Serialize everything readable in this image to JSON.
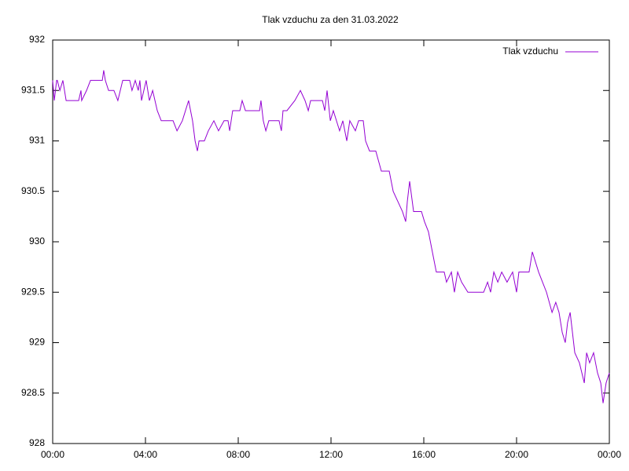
{
  "chart_data": {
    "type": "line",
    "title": "Tlak vzduchu za den 31.03.2022",
    "x": [
      0,
      0.07,
      0.17,
      0.2,
      0.31,
      0.44,
      0.58,
      0.71,
      1.12,
      1.22,
      1.25,
      1.46,
      1.63,
      2.14,
      2.2,
      2.27,
      2.41,
      2.64,
      2.81,
      3.02,
      3.32,
      3.42,
      3.56,
      3.69,
      3.76,
      3.83,
      4.03,
      4.17,
      4.31,
      4.51,
      4.68,
      4.78,
      5.19,
      5.36,
      5.59,
      5.86,
      6.03,
      6.14,
      6.24,
      6.31,
      6.54,
      6.71,
      6.95,
      7.15,
      7.39,
      7.56,
      7.63,
      7.76,
      8.07,
      8.17,
      8.31,
      8.92,
      8.98,
      9.08,
      9.19,
      9.32,
      9.76,
      9.86,
      9.93,
      10.1,
      10.44,
      10.68,
      10.88,
      11.02,
      11.12,
      11.63,
      11.73,
      11.83,
      11.97,
      12.1,
      12.37,
      12.51,
      12.68,
      12.81,
      13.05,
      13.19,
      13.39,
      13.49,
      13.66,
      13.93,
      14.17,
      14.51,
      14.68,
      14.88,
      15.08,
      15.22,
      15.29,
      15.39,
      15.56,
      15.9,
      16.03,
      16.2,
      16.37,
      16.54,
      16.88,
      16.98,
      17.19,
      17.32,
      17.46,
      17.63,
      17.9,
      18.58,
      18.75,
      18.88,
      19.02,
      19.19,
      19.36,
      19.59,
      19.83,
      20.0,
      20.1,
      20.54,
      20.68,
      20.95,
      21.12,
      21.29,
      21.53,
      21.69,
      21.83,
      21.97,
      22.1,
      22.2,
      22.31,
      22.51,
      22.71,
      22.92,
      23.02,
      23.15,
      23.32,
      23.49,
      23.63,
      23.73,
      23.86,
      24.0
    ],
    "series": [
      {
        "name": "Tlak vzduchu",
        "color": "#9400d3",
        "values": [
          931.6,
          931.4,
          931.6,
          931.6,
          931.5,
          931.6,
          931.4,
          931.4,
          931.4,
          931.5,
          931.4,
          931.5,
          931.6,
          931.6,
          931.7,
          931.6,
          931.5,
          931.5,
          931.4,
          931.6,
          931.6,
          931.5,
          931.6,
          931.5,
          931.6,
          931.4,
          931.6,
          931.4,
          931.5,
          931.3,
          931.2,
          931.2,
          931.2,
          931.1,
          931.2,
          931.4,
          931.2,
          931.0,
          930.9,
          931.0,
          931.0,
          931.1,
          931.2,
          931.1,
          931.2,
          931.2,
          931.1,
          931.3,
          931.3,
          931.4,
          931.3,
          931.3,
          931.4,
          931.2,
          931.1,
          931.2,
          931.2,
          931.1,
          931.3,
          931.3,
          931.4,
          931.5,
          931.4,
          931.3,
          931.4,
          931.4,
          931.3,
          931.5,
          931.2,
          931.3,
          931.1,
          931.2,
          931.0,
          931.2,
          931.1,
          931.2,
          931.2,
          931.0,
          930.9,
          930.9,
          930.7,
          930.7,
          930.5,
          930.4,
          930.3,
          930.2,
          930.4,
          930.6,
          930.3,
          930.3,
          930.2,
          930.1,
          929.9,
          929.7,
          929.7,
          929.6,
          929.7,
          929.5,
          929.7,
          929.6,
          929.5,
          929.5,
          929.6,
          929.5,
          929.7,
          929.6,
          929.7,
          929.6,
          929.7,
          929.5,
          929.7,
          929.7,
          929.9,
          929.7,
          929.6,
          929.5,
          929.3,
          929.4,
          929.3,
          929.1,
          929.0,
          929.2,
          929.3,
          928.9,
          928.8,
          928.6,
          928.9,
          928.8,
          928.9,
          928.7,
          928.6,
          928.4,
          928.6,
          928.7
        ]
      }
    ],
    "xlim": [
      0,
      24
    ],
    "xticks": [
      {
        "value": 0,
        "label": "00:00"
      },
      {
        "value": 4,
        "label": "04:00"
      },
      {
        "value": 8,
        "label": "08:00"
      },
      {
        "value": 12,
        "label": "12:00"
      },
      {
        "value": 16,
        "label": "16:00"
      },
      {
        "value": 20,
        "label": "20:00"
      },
      {
        "value": 24,
        "label": "00:00"
      }
    ],
    "ylim": [
      928,
      932
    ],
    "yticks": [
      928,
      928.5,
      929,
      929.5,
      930,
      930.5,
      931,
      931.5,
      932
    ],
    "legend": "top-right"
  }
}
